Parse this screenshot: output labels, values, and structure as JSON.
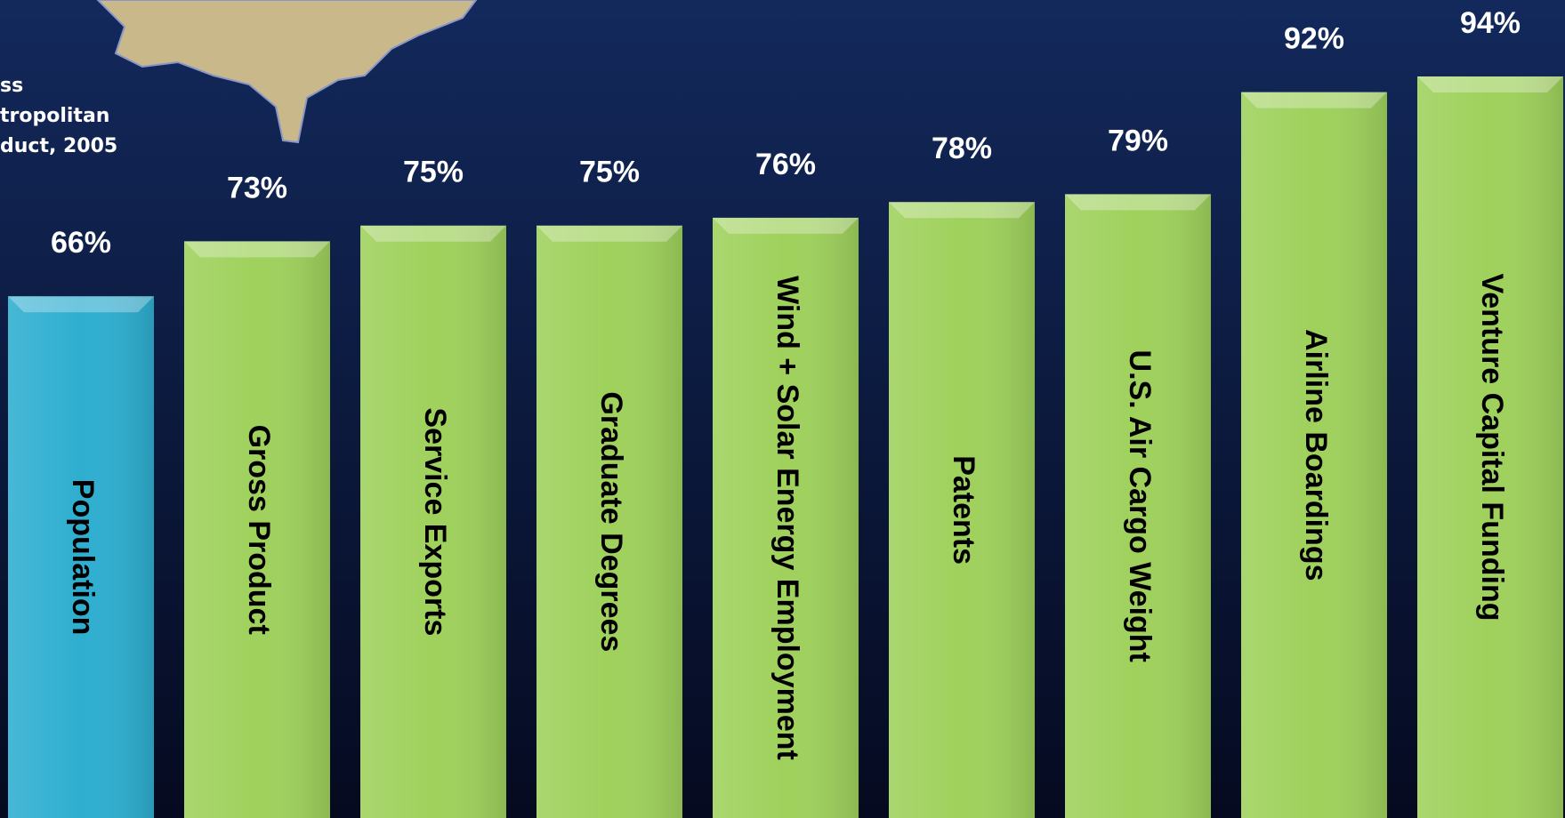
{
  "chart_data": {
    "type": "bar",
    "annotation": [
      "ss",
      "tropolitan",
      "duct, 2005"
    ],
    "categories": [
      "Population",
      "Gross Product",
      "Service Exports",
      "Graduate Degrees",
      "Wind + Solar  Energy Employment",
      "Patents",
      "U.S. Air Cargo Weight",
      "Airline Boardings",
      "Venture Capital Funding"
    ],
    "values": [
      66,
      73,
      75,
      75,
      76,
      78,
      79,
      92,
      94
    ],
    "value_labels": [
      "66%",
      "73%",
      "75%",
      "75%",
      "76%",
      "78%",
      "79%",
      "92%",
      "94%"
    ],
    "colors": [
      "#2eaed0",
      "#9fd15c",
      "#9fd15c",
      "#9fd15c",
      "#9fd15c",
      "#9fd15c",
      "#9fd15c",
      "#9fd15c",
      "#9fd15c"
    ]
  }
}
